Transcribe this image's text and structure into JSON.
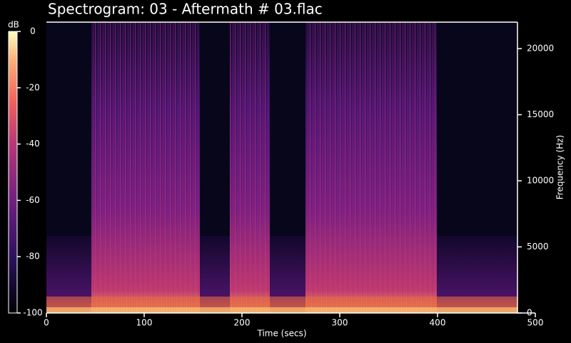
{
  "chart_data": {
    "type": "spectrogram",
    "title": "Spectrogram: 03 - Aftermath # 03.flac",
    "x_label": "Time (secs)",
    "y_label": "Frequency (Hz)",
    "xlim": [
      0,
      500
    ],
    "xticks": [
      0,
      100,
      200,
      300,
      400,
      500
    ],
    "ylim": [
      0,
      22000
    ],
    "yticks": [
      0,
      5000,
      10000,
      15000,
      20000
    ],
    "colorbar": {
      "label": "dB",
      "lim": [
        -100,
        0
      ],
      "ticks": [
        0,
        -20,
        -40,
        -60,
        -80,
        -100
      ]
    }
  }
}
